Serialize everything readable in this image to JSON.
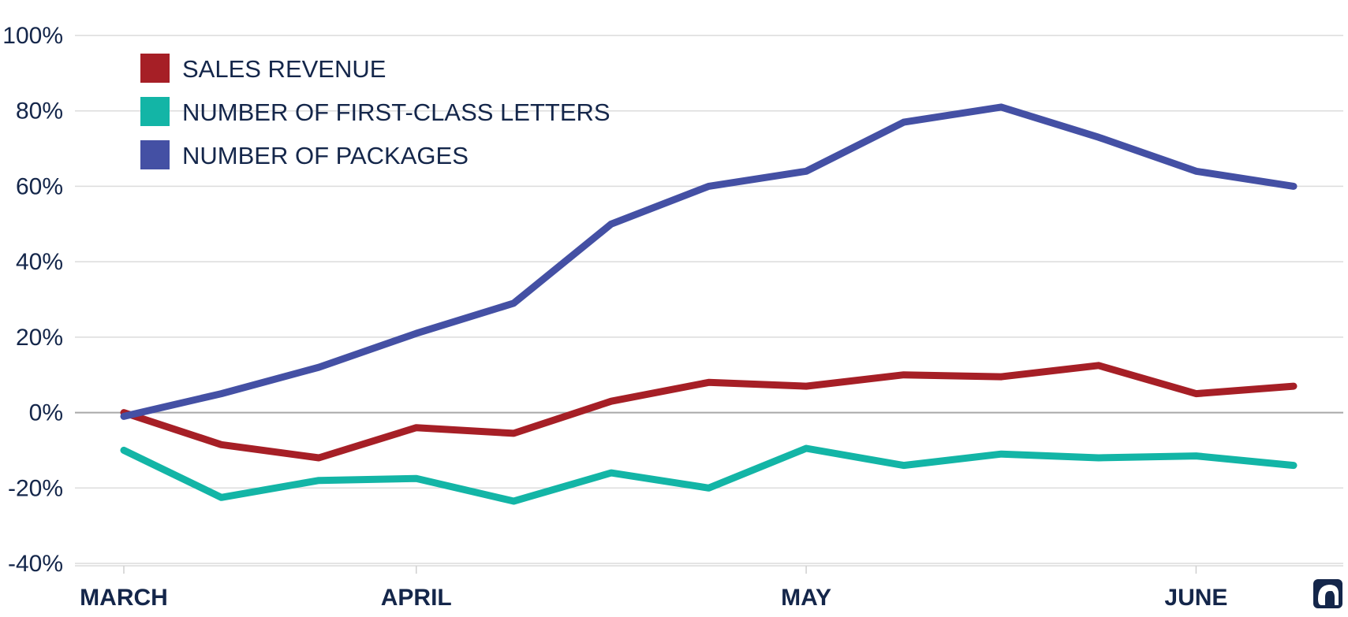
{
  "chart_data": {
    "type": "line",
    "x": [
      "MARCH",
      "",
      "",
      "APRIL",
      "",
      "",
      "",
      "MAY",
      "",
      "",
      "",
      "JUNE",
      ""
    ],
    "x_tick_labels": [
      "MARCH",
      "APRIL",
      "MAY",
      "JUNE"
    ],
    "y_tick_labels": [
      "100%",
      "80%",
      "60%",
      "40%",
      "20%",
      "0%",
      "-20%",
      "-40%"
    ],
    "ylim": [
      -40,
      100
    ],
    "y_ticks": [
      100,
      80,
      60,
      40,
      20,
      0,
      -20,
      -40
    ],
    "grid": true,
    "legend_placement": "top-left",
    "series": [
      {
        "name": "SALES REVENUE",
        "color": "#a61f26",
        "values": [
          0,
          -8.5,
          -12,
          -4,
          -5.5,
          3,
          8,
          7,
          10,
          9.5,
          12.5,
          5,
          7
        ]
      },
      {
        "name": "NUMBER OF FIRST-CLASS LETTERS",
        "color": "#13b5a6",
        "values": [
          -10,
          -22.5,
          -18,
          -17.5,
          -23.5,
          -16,
          -20,
          -9.5,
          -14,
          -11,
          -12,
          -11.5,
          -14
        ]
      },
      {
        "name": "NUMBER OF PACKAGES",
        "color": "#4450a4",
        "values": [
          -1,
          5,
          12,
          21,
          29,
          50,
          60,
          64,
          77,
          81,
          73,
          64,
          60
        ]
      }
    ]
  },
  "logo": {
    "icon": "elephant-logo-icon",
    "color": "#14264a"
  }
}
